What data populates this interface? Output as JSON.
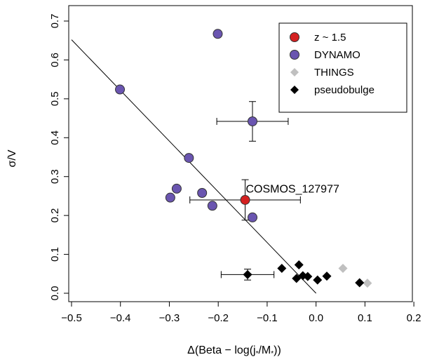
{
  "chart_data": {
    "type": "scatter",
    "xlabel_main": "Δ(Beta − log(j",
    "xlabel_sub1": "*",
    "xlabel_mid": "/M",
    "xlabel_sub2": "*",
    "xlabel_end": "))",
    "ylabel": "σ/V",
    "xlim": [
      -0.5,
      0.2
    ],
    "ylim": [
      0.0,
      0.7
    ],
    "x_ticks": [
      -0.5,
      -0.4,
      -0.3,
      -0.2,
      -0.1,
      0.0,
      0.1,
      0.2
    ],
    "x_tick_labels": [
      "−0.5",
      "−0.4",
      "−0.3",
      "−0.2",
      "−0.1",
      "0.0",
      "0.1",
      "0.2"
    ],
    "y_ticks": [
      0.0,
      0.1,
      0.2,
      0.3,
      0.4,
      0.5,
      0.6,
      0.7
    ],
    "y_tick_labels": [
      "0.0",
      "0.1",
      "0.2",
      "0.3",
      "0.4",
      "0.5",
      "0.6",
      "0.7"
    ],
    "grid": false,
    "legend_position": "top-right",
    "series": [
      {
        "name": "z ~ 1.5",
        "marker": "circle",
        "color": "#d42020",
        "points": [
          {
            "x": -0.145,
            "y": 0.24,
            "xerr": 0.113,
            "yerr": 0.052
          }
        ]
      },
      {
        "name": "DYNAMO",
        "marker": "circle",
        "color": "#6a55b0",
        "points": [
          {
            "x": -0.401,
            "y": 0.524
          },
          {
            "x": -0.201,
            "y": 0.667
          },
          {
            "x": -0.13,
            "y": 0.442,
            "xerr": 0.073,
            "yerr": 0.051
          },
          {
            "x": -0.26,
            "y": 0.348
          },
          {
            "x": -0.285,
            "y": 0.269
          },
          {
            "x": -0.298,
            "y": 0.246
          },
          {
            "x": -0.233,
            "y": 0.258
          },
          {
            "x": -0.212,
            "y": 0.225
          },
          {
            "x": -0.13,
            "y": 0.195
          }
        ]
      },
      {
        "name": "THINGS",
        "marker": "diamond",
        "color": "#c0c0c0",
        "points": [
          {
            "x": 0.055,
            "y": 0.064
          },
          {
            "x": 0.105,
            "y": 0.026
          }
        ]
      },
      {
        "name": "pseudobulge",
        "marker": "diamond",
        "color": "#000000",
        "points": [
          {
            "x": -0.14,
            "y": 0.048,
            "xerr": 0.054,
            "yerr": 0.014
          },
          {
            "x": -0.07,
            "y": 0.064
          },
          {
            "x": -0.035,
            "y": 0.073
          },
          {
            "x": -0.04,
            "y": 0.038
          },
          {
            "x": -0.027,
            "y": 0.045
          },
          {
            "x": -0.017,
            "y": 0.043
          },
          {
            "x": 0.003,
            "y": 0.034
          },
          {
            "x": 0.022,
            "y": 0.044
          },
          {
            "x": 0.089,
            "y": 0.027
          }
        ]
      }
    ],
    "fit_line": {
      "x1": -0.5,
      "y1": 0.652,
      "x2": 0.0,
      "y2": 0.0
    },
    "annotation": {
      "text": "COSMOS_127977",
      "x": -0.048,
      "y": 0.259
    }
  }
}
